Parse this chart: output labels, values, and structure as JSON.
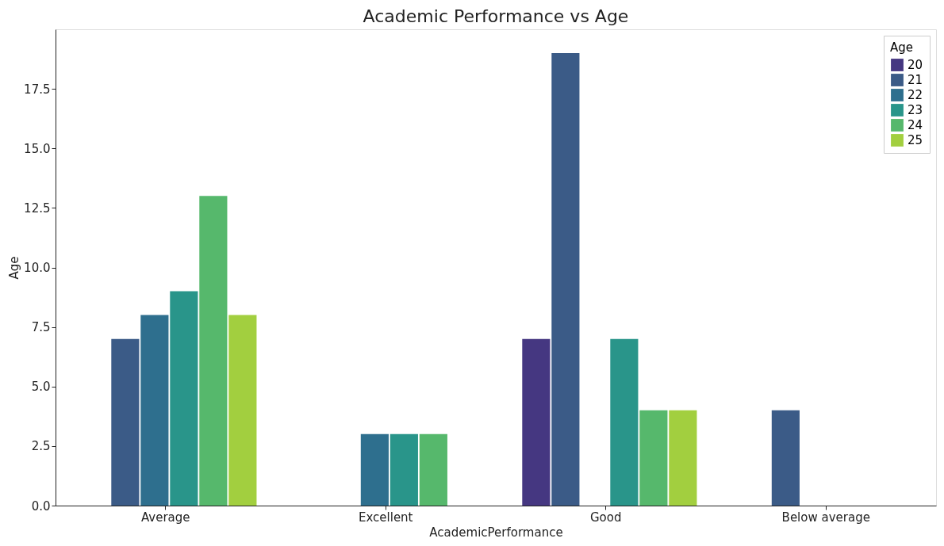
{
  "chart_data": {
    "type": "bar",
    "title": "Academic Performance vs Age",
    "xlabel": "AcademicPerformance",
    "ylabel": "Age",
    "legend_title": "Age",
    "legend": "top right",
    "grid": false,
    "categories": [
      "Average",
      "Excellent",
      "Good",
      "Below average"
    ],
    "series": [
      {
        "name": "20",
        "color": "#453781",
        "values": [
          null,
          null,
          7,
          null
        ]
      },
      {
        "name": "21",
        "color": "#3b5b87",
        "values": [
          7,
          null,
          19,
          4
        ]
      },
      {
        "name": "22",
        "color": "#2e6f8e",
        "values": [
          8,
          3,
          null,
          null
        ]
      },
      {
        "name": "23",
        "color": "#29958a",
        "values": [
          9,
          3,
          7,
          null
        ]
      },
      {
        "name": "24",
        "color": "#56b86c",
        "values": [
          13,
          3,
          4,
          null
        ]
      },
      {
        "name": "25",
        "color": "#a2cf3f",
        "values": [
          8,
          null,
          4,
          null
        ]
      }
    ],
    "ylim": [
      0,
      20
    ],
    "yticks": [
      {
        "value": 0,
        "label": "0.0"
      },
      2.5,
      {
        "value": 5,
        "label": "5.0"
      },
      7.5,
      {
        "value": 10,
        "label": "10.0"
      },
      12.5,
      {
        "value": 15,
        "label": "15.0"
      },
      17.5
    ]
  }
}
